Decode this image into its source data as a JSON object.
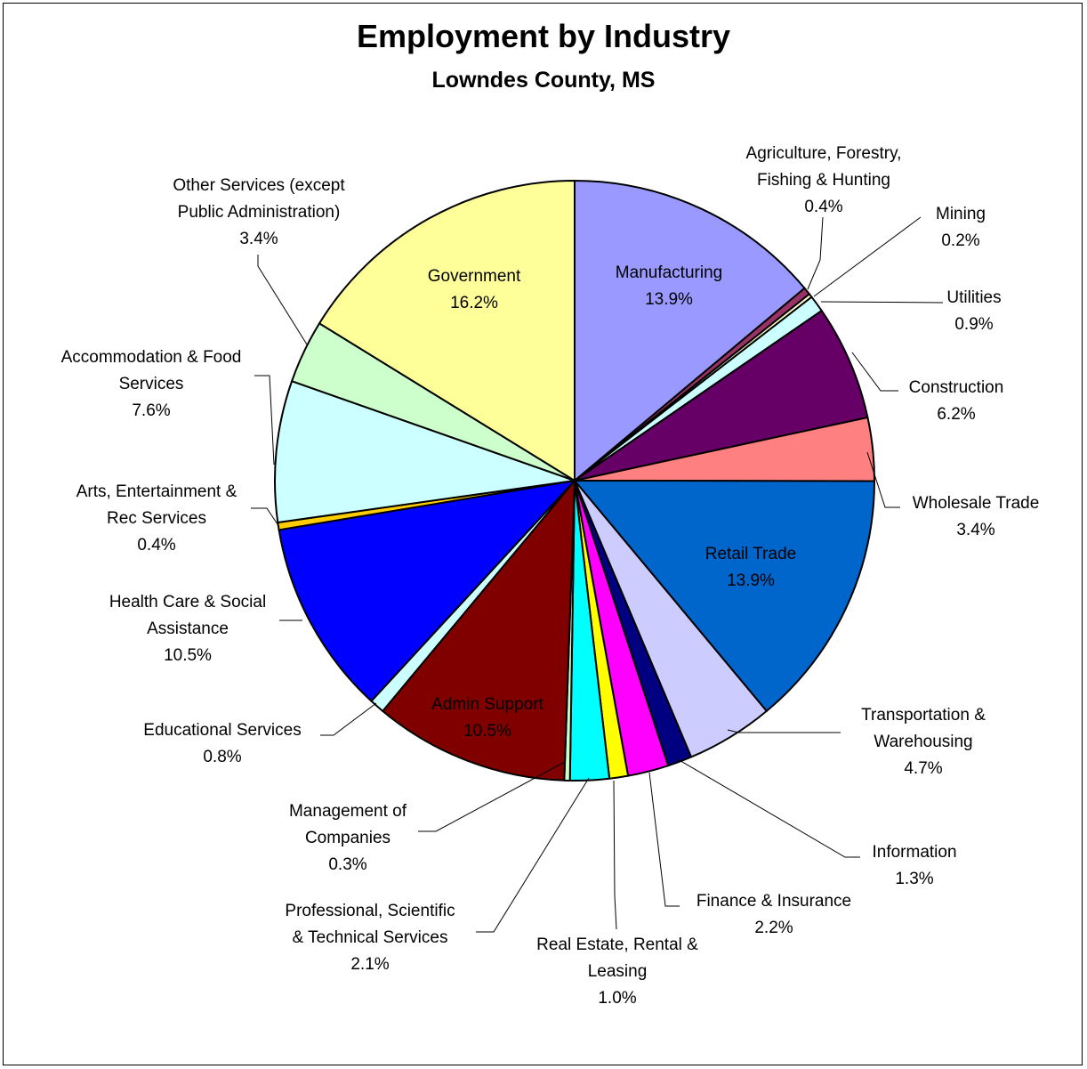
{
  "chart_data": {
    "type": "pie",
    "title": "Employment by Industry",
    "subtitle": "Lowndes County, MS",
    "slices": [
      {
        "label": "Manufacturing",
        "value": 13.9,
        "value_label": "13.9%",
        "color": "#9999ff",
        "text_color": "#000000"
      },
      {
        "label": "Agriculture, Forestry, Fishing & Hunting",
        "value": 0.4,
        "value_label": "0.4%",
        "color": "#993366",
        "text_color": "#000000"
      },
      {
        "label": "Mining",
        "value": 0.2,
        "value_label": "0.2%",
        "color": "#ffffcc",
        "text_color": "#000000"
      },
      {
        "label": "Utilities",
        "value": 0.9,
        "value_label": "0.9%",
        "color": "#ccffff",
        "text_color": "#000000"
      },
      {
        "label": "Construction",
        "value": 6.2,
        "value_label": "6.2%",
        "color": "#660066",
        "text_color": "#000000"
      },
      {
        "label": "Wholesale Trade",
        "value": 3.4,
        "value_label": "3.4%",
        "color": "#ff8080",
        "text_color": "#000000"
      },
      {
        "label": "Retail Trade",
        "value": 13.9,
        "value_label": "13.9%",
        "color": "#0066cc",
        "text_color": "#ffff99"
      },
      {
        "label": "Transportation & Warehousing",
        "value": 4.7,
        "value_label": "4.7%",
        "color": "#ccccff",
        "text_color": "#000000"
      },
      {
        "label": "Information",
        "value": 1.3,
        "value_label": "1.3%",
        "color": "#000080",
        "text_color": "#000000"
      },
      {
        "label": "Finance & Insurance",
        "value": 2.2,
        "value_label": "2.2%",
        "color": "#ff00ff",
        "text_color": "#000000"
      },
      {
        "label": "Real Estate, Rental & Leasing",
        "value": 1.0,
        "value_label": "1.0%",
        "color": "#ffff00",
        "text_color": "#000000"
      },
      {
        "label": "Professional, Scientific & Technical Services",
        "value": 2.1,
        "value_label": "2.1%",
        "color": "#00ffff",
        "text_color": "#000000"
      },
      {
        "label": "Management of Companies",
        "value": 0.3,
        "value_label": "0.3%",
        "color": "#ccffcc",
        "text_color": "#000000"
      },
      {
        "label": "Admin Support",
        "value": 10.5,
        "value_label": "10.5%",
        "color": "#800000",
        "text_color": "#ffff99"
      },
      {
        "label": "Educational Services",
        "value": 0.8,
        "value_label": "0.8%",
        "color": "#ccffff",
        "text_color": "#000000"
      },
      {
        "label": "Health Care & Social Assistance",
        "value": 10.5,
        "value_label": "10.5%",
        "color": "#0000ff",
        "text_color": "#000000"
      },
      {
        "label": "Arts, Entertainment & Rec Services",
        "value": 0.4,
        "value_label": "0.4%",
        "color": "#ffcc00",
        "text_color": "#000000"
      },
      {
        "label": "Accommodation & Food Services",
        "value": 7.6,
        "value_label": "7.6%",
        "color": "#ccffff",
        "text_color": "#000000"
      },
      {
        "label": "Other Services (except Public Administration)",
        "value": 3.4,
        "value_label": "3.4%",
        "color": "#ccffcc",
        "text_color": "#000000"
      },
      {
        "label": "Government",
        "value": 16.2,
        "value_label": "16.2%",
        "color": "#ffff99",
        "text_color": "#000000"
      }
    ]
  }
}
